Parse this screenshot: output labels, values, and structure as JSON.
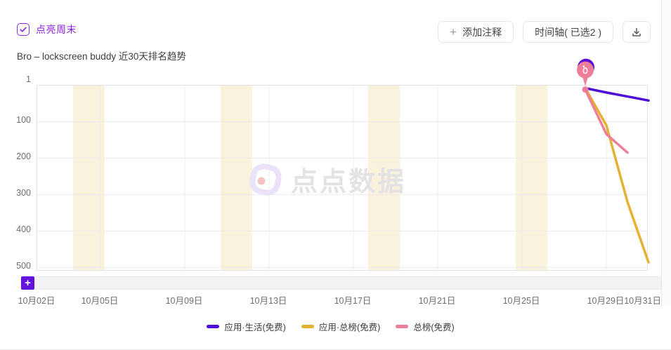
{
  "colors": {
    "accent_purple": "#8b1fe0",
    "plus_button_purple": "#6414dd",
    "weekend_band": "#f9f2dd",
    "grid_line": "#ececec",
    "axis_label": "#6e6e77",
    "watermark_text_gray": "#e3e3e5",
    "watermark_ring": "#ebe1f8",
    "watermark_dot": "#f5c3c4"
  },
  "header": {
    "weekend_checkbox_label": "点亮周末",
    "weekend_checkbox_checked": true,
    "add_annotation_plus": "+",
    "add_annotation_button": "添加注释",
    "timeline_button": "时间轴( 已选2 )"
  },
  "title": "Bro – lockscreen buddy 近30天排名趋势",
  "watermark_text": "点点数据",
  "range_add_button": "+",
  "chart_data": {
    "type": "line",
    "title": "Bro – lockscreen buddy 近30天排名趋势",
    "legend_position": "bottom",
    "grid": true,
    "x_axis": {
      "tick_labels": [
        "10月02日",
        "10月05日",
        "10月09日",
        "10月13日",
        "10月17日",
        "10月21日",
        "10月25日",
        "10月29日",
        "10月31日"
      ],
      "tick_days": [
        0,
        3,
        7,
        11,
        15,
        19,
        23,
        27,
        29
      ],
      "total_days": 29
    },
    "y_axis": {
      "inverted": true,
      "ticks": [
        1,
        100,
        200,
        300,
        400,
        500
      ],
      "min": 1,
      "max": 511
    },
    "weekend_bands_days": [
      [
        1.7,
        3.2
      ],
      [
        8.7,
        10.2
      ],
      [
        15.7,
        17.2
      ],
      [
        22.7,
        24.2
      ]
    ],
    "series": [
      {
        "name": "应用·生活(免费)",
        "color": "#4f0ed8",
        "days": [
          26,
          27,
          28,
          29
        ],
        "ranks": [
          8,
          20,
          31,
          42
        ]
      },
      {
        "name": "应用·总榜(免费)",
        "color": "#e4b133",
        "days": [
          26,
          27,
          28,
          29
        ],
        "ranks": [
          8,
          110,
          320,
          486
        ]
      },
      {
        "name": "总榜(免费)",
        "color": "#ed7f99",
        "days": [
          26,
          27,
          28
        ],
        "ranks": [
          12,
          134,
          185
        ]
      }
    ],
    "annotation_marker": {
      "day": 26,
      "rank": 10,
      "balloon_front_color": "#ee7d99",
      "balloon_back_color": "#5a10d8"
    }
  }
}
